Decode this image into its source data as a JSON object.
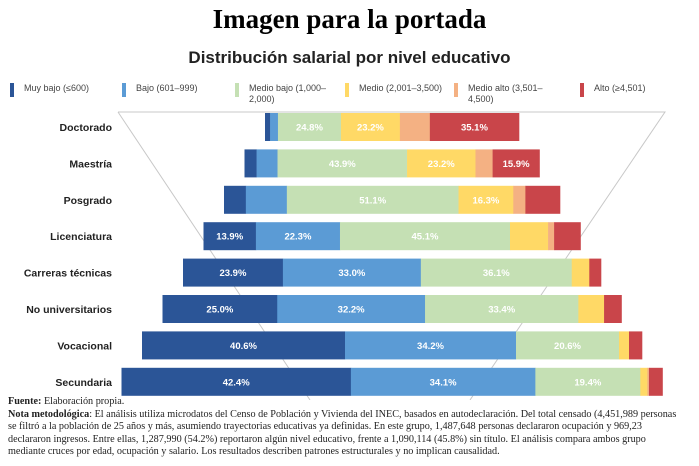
{
  "title": "Imagen para la portada",
  "chart_data": {
    "type": "bar",
    "orientation": "horizontal-stacked-funnel",
    "title": "Distribución salarial por nivel educativo",
    "categories": [
      "Doctorado",
      "Maestría",
      "Posgrado",
      "Licenciatura",
      "Carreras técnicas",
      "No universitarios",
      "Vocacional",
      "Secundaria"
    ],
    "series": [
      {
        "name": "Muy bajo (≤600)",
        "color": "#2b5597",
        "values": [
          2.0,
          4.1,
          6.5,
          13.9,
          23.9,
          25.0,
          40.6,
          42.4
        ]
      },
      {
        "name": "Bajo (601–999)",
        "color": "#5b9bd5",
        "values": [
          3.1,
          7.1,
          12.2,
          22.3,
          33.0,
          32.2,
          34.2,
          34.1
        ]
      },
      {
        "name": "Medio bajo (1,000–2,000)",
        "color": "#c5e0b4",
        "values": [
          24.8,
          43.9,
          51.1,
          45.1,
          36.1,
          33.4,
          20.6,
          19.4
        ]
      },
      {
        "name": "Medio (2,001–3,500)",
        "color": "#ffd966",
        "values": [
          23.2,
          23.2,
          16.3,
          10.1,
          4.2,
          5.6,
          2.0,
          1.3
        ]
      },
      {
        "name": "Medio alto (3,501–4,500)",
        "color": "#f4b183",
        "values": [
          11.8,
          5.8,
          3.6,
          1.6,
          0,
          0,
          0,
          0.3
        ]
      },
      {
        "name": "Alto (≥4,501)",
        "color": "#c9454a",
        "values": [
          35.1,
          15.9,
          10.3,
          7.0,
          2.8,
          3.8,
          2.6,
          2.5
        ]
      }
    ],
    "data_labels": [
      [
        "",
        "",
        "24.8%",
        "23.2%",
        "",
        "35.1%"
      ],
      [
        "",
        "",
        "43.9%",
        "23.2%",
        "",
        "15.9%"
      ],
      [
        "",
        "",
        "51.1%",
        "16.3%",
        "",
        ""
      ],
      [
        "13.9%",
        "22.3%",
        "45.1%",
        "",
        "",
        ""
      ],
      [
        "23.9%",
        "33.0%",
        "36.1%",
        "",
        "",
        ""
      ],
      [
        "25.0%",
        "32.2%",
        "33.4%",
        "",
        "",
        ""
      ],
      [
        "40.6%",
        "34.2%",
        "20.6%",
        "",
        "",
        ""
      ],
      [
        "42.4%",
        "34.1%",
        "19.4%",
        "",
        "",
        ""
      ]
    ],
    "legend": "top",
    "grid": false
  },
  "legend_items": [
    {
      "line1": "Muy bajo (≤600)",
      "line2": ""
    },
    {
      "line1": "Bajo (601–999)",
      "line2": ""
    },
    {
      "line1": "Medio bajo (1,000–",
      "line2": "2,000)"
    },
    {
      "line1": "Medio (2,001–3,500)",
      "line2": ""
    },
    {
      "line1": "Medio alto (3,501–",
      "line2": "4,500)"
    },
    {
      "line1": "Alto (≥4,501)",
      "line2": ""
    }
  ],
  "footer": {
    "source_label": "Fuente:",
    "source_text": " Elaboración propia.",
    "note_label_1": "Nota ",
    "note_label_2": "metodológica",
    "note_line1": ": El análisis utiliza microdatos del Censo de Población y Vivienda del INEC, basados en autodeclaración. Del total censado (4,451,989 personas",
    "note_line2": "se filtró a la población de 25 años y más, asumiendo trayectorias educativas ya definidas. En este grupo, 1,487,648 personas declararon ocupación y 969,23",
    "note_line3": "declararon ingresos. Entre ellas, 1,287,990 (54.2%) reportaron algún nivel educativo, frente a 1,090,114 (45.8%) sin título. El análisis compara ambos grupo",
    "note_line4": "mediante cruces por edad, ocupación y salario. Los resultados describen patrones estructurales y no implican causalidad."
  }
}
